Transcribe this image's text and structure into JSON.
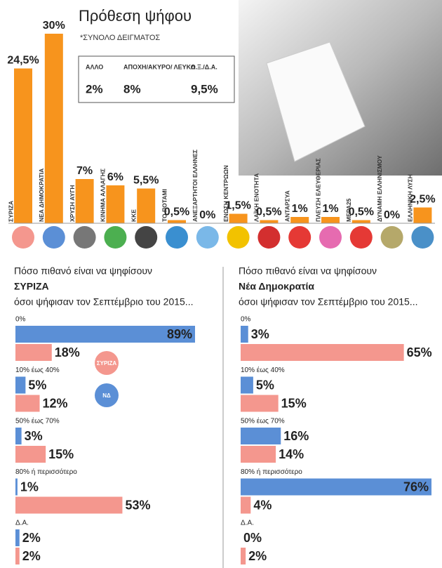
{
  "chart_data": [
    {
      "type": "bar",
      "title": "Πρόθεση ψήφου",
      "subtitle": "*ΣΥΝΟΛΟ ΔΕΙΓΜΑΤΟΣ",
      "categories": [
        "ΣΥΡΙΖΑ",
        "ΝΕΑ ΔΗΜΟΚΡΑΤΙΑ",
        "ΧΡΥΣΗ ΑΥΓΗ",
        "ΚΙΝΗΜΑ ΑΛΛΑΓΗΣ",
        "ΚΚΕ",
        "ΤΟ ΠΟΤΑΜΙ",
        "ΑΝΕΞΑΡΤΗΤΟΙ ΕΛΛΗΝΕΣ",
        "ΕΝΩΣΗ ΚΕΝΤΡΩΩΝ",
        "ΛΑΪΚΗ ΕΝΟΤΗΤΑ",
        "ΑΝΤΑΡΣΥΑ",
        "ΠΛΕΥΣΗ ΕΛΕΥΘΕΡΙΑΣ",
        "ΜΕΡΑ25",
        "ΔΥΝΑΜΗ ΕΛΛΗΝΙΣΜΟΥ",
        "ΕΛΛΗΝΙΚΗ ΛΥΣΗ"
      ],
      "values": [
        24.5,
        30,
        7,
        6,
        5.5,
        0.5,
        0,
        1.5,
        0.5,
        1,
        1,
        0.5,
        0,
        2.5
      ],
      "value_labels": [
        "24,5%",
        "30%",
        "7%",
        "6%",
        "5,5%",
        "0,5%",
        "0%",
        "1,5%",
        "0,5%",
        "1%",
        "1%",
        "0,5%",
        "0%",
        "2,5%"
      ],
      "color": "#f7941d",
      "ylim": [
        0,
        30
      ],
      "box": [
        {
          "label": "ΑΛΛΟ",
          "value": "2%"
        },
        {
          "label": "ΑΠΟΧΗ/ΑΚΥΡΟ/ ΛΕΥΚΟ",
          "value": "8%"
        },
        {
          "label": "Δ.Ξ./Δ.Α.",
          "value": "9,5%"
        }
      ]
    },
    {
      "type": "hbar",
      "title_prefix": "Πόσο πιθανό είναι να ψηφίσουν",
      "title_party": "ΣΥΡΙΖΑ",
      "title_suffix": "όσοι ψήφισαν τον Σεπτέμβριο του 2015...",
      "categories": [
        "0%",
        "10% έως 40%",
        "50% έως 70%",
        "80% ή περισσότερο",
        "Δ.Α."
      ],
      "xlim": [
        0,
        89
      ],
      "series": [
        {
          "name": "ΝΔ",
          "color": "#5b8fd6",
          "values": [
            89,
            5,
            3,
            1,
            2
          ],
          "value_labels": [
            "89%",
            "5%",
            "3%",
            "1%",
            "2%"
          ]
        },
        {
          "name": "ΣΥΡΙΖΑ",
          "color": "#f4978e",
          "values": [
            18,
            12,
            15,
            53,
            2
          ],
          "value_labels": [
            "18%",
            "12%",
            "15%",
            "53%",
            "2%"
          ]
        }
      ]
    },
    {
      "type": "hbar",
      "title_prefix": "Πόσο πιθανό είναι να ψηφίσουν",
      "title_party": "Νέα Δημοκρατία",
      "title_suffix": "όσοι ψήφισαν τον Σεπτέμβριο του 2015...",
      "categories": [
        "0%",
        "10% έως 40%",
        "50% έως 70%",
        "80% ή περισσότερο",
        "Δ.Α."
      ],
      "xlim": [
        0,
        76
      ],
      "series": [
        {
          "name": "ΝΔ",
          "color": "#5b8fd6",
          "values": [
            3,
            5,
            16,
            76,
            0
          ],
          "value_labels": [
            "3%",
            "5%",
            "16%",
            "76%",
            "0%"
          ]
        },
        {
          "name": "ΣΥΡΙΖΑ",
          "color": "#f4978e",
          "values": [
            65,
            15,
            14,
            4,
            2
          ],
          "value_labels": [
            "65%",
            "15%",
            "14%",
            "4%",
            "2%"
          ]
        }
      ]
    }
  ]
}
